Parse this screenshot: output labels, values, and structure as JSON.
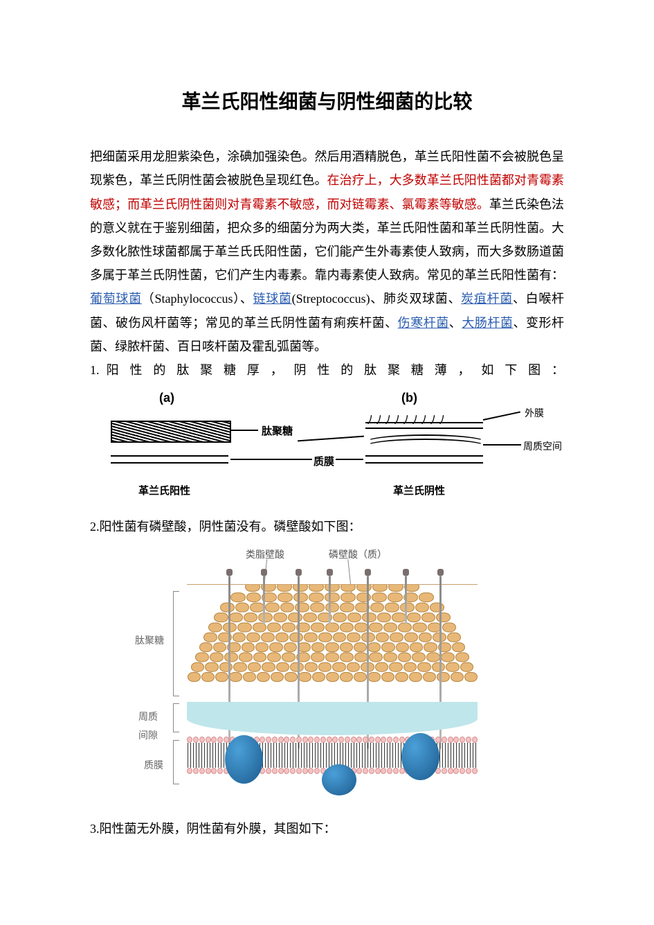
{
  "title": "革兰氏阳性细菌与阴性细菌的比较",
  "para1": {
    "t1": "把细菌采用龙胆紫染色，涂碘加强染色。然后用酒精脱色，革兰氏阳性菌不会被脱色呈现紫色，革兰氏阴性菌会被脱色呈现红色。",
    "t2_red": "在治疗上，大多数革兰氏阳性菌都对青霉素敏感；而革兰氏阴性菌则对青霉素不敏感，而对链霉素、氯霉素等敏感。",
    "t3": "革兰氏染色法的意义就在于鉴别细菌，把众多的细菌分为两大类，革兰氏阳性菌和革兰氏阴性菌。大多数化脓性球菌都属于革兰氏氏阳性菌，它们能产生外毒素使人致病，而大多数肠道菌多属于革兰氏阴性菌，它们产生内毒素。靠内毒素使人致病。常见的革兰氏阳性菌有：",
    "link1": "葡萄球菌",
    "t4": "（Staphylococcus）、",
    "link2": "链球菌",
    "t5": "(Streptococcus)、肺炎双球菌、",
    "link3": "炭疽杆菌",
    "t6": "、白喉杆菌、破伤风杆菌等；常见的革兰氏阴性菌有痢疾杆菌、",
    "link4": "伤寒杆菌",
    "t7": "、",
    "link5": "大肠杆菌",
    "t8": "、变形杆菌、绿脓杆菌、百日咳杆菌及霍乱弧菌等。"
  },
  "item1": "1. 阳 性 的 肽 聚 糖 厚 ， 阴 性 的 肽 聚 糖 薄 ， 如 下 图 ：",
  "fig1": {
    "a": "(a)",
    "b": "(b)",
    "peptidoglycan": "肽聚糖",
    "plasma": "质膜",
    "outer": "外膜",
    "periplasm": "周质空间",
    "gram_pos": "革兰氏阳性",
    "gram_neg": "革兰氏阴性"
  },
  "item2": "2.阳性菌有磷壁酸，阴性菌没有。磷壁酸如下图：",
  "fig2": {
    "label_pep": "肽聚糖",
    "label_peri": "周质\n间隙",
    "label_pm": "质膜",
    "label_lta": "类脂壁酸",
    "label_ta": "磷壁酸（质）"
  },
  "item3": "3.阳性菌无外膜，阴性菌有外膜，其图如下：",
  "colors": {
    "text": "#000000",
    "red": "#c00000",
    "link": "#2a5db0",
    "pep_fill": "#e8b878",
    "pep_border": "#b5843e",
    "periplasm": "#bfe6ea",
    "lipid_head": "#f4c2c2",
    "lipid_border": "#d78f8f",
    "protein_light": "#4aa0d8",
    "protein_dark": "#1b5a8e",
    "gray_label": "#666666",
    "background": "#ffffff"
  }
}
